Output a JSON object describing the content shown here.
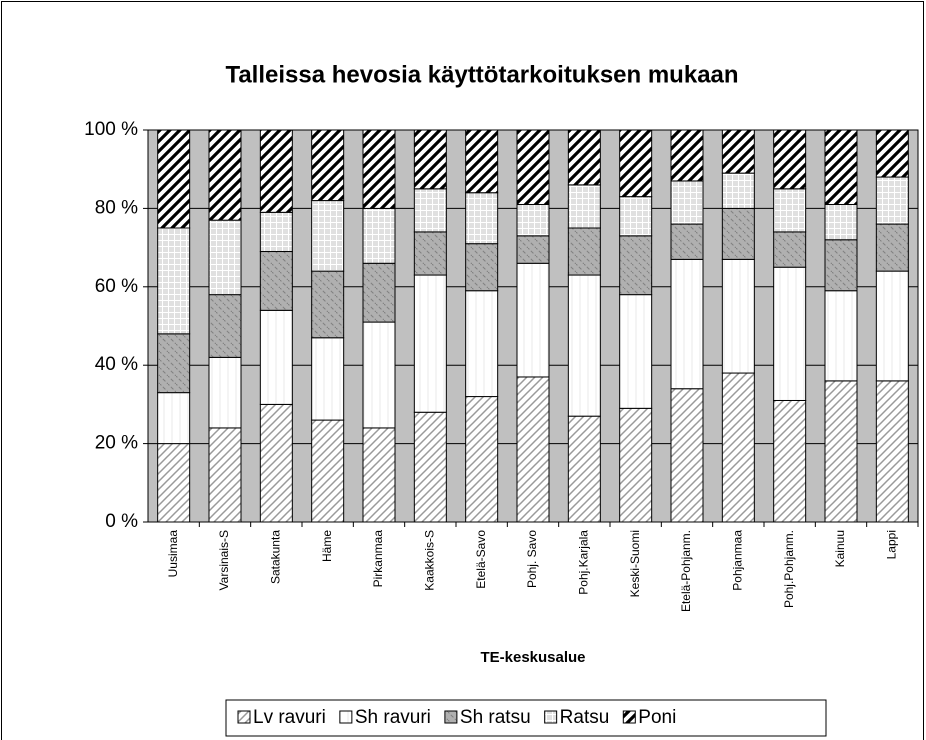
{
  "chart_data": {
    "type": "stacked_bar_100",
    "title": "Talleissa hevosia käyttötarkoituksen mukaan",
    "x_label": "TE-keskusalue",
    "categories": [
      "Uusimaa",
      "Varsinais-S",
      "Satakunta",
      "Häme",
      "Pirkanmaa",
      "Kaakkois-S",
      "Etelä-Savo",
      "Pohj. Savo",
      "Pohj.Karjala",
      "Keski-Suomi",
      "Etelä-Pohjanm.",
      "Pohjanmaa",
      "Pohj.Pohjanm.",
      "Kainuu",
      "Lappi"
    ],
    "series": [
      {
        "name": "Lv ravuri",
        "color": "#9a9a9a",
        "values": [
          20,
          24,
          30,
          26,
          24,
          28,
          32,
          37,
          27,
          29,
          34,
          38,
          31,
          36,
          36
        ]
      },
      {
        "name": "Sh ravuri",
        "color": "#ffffff",
        "values": [
          13,
          18,
          24,
          21,
          27,
          35,
          27,
          29,
          36,
          29,
          33,
          29,
          34,
          23,
          28
        ]
      },
      {
        "name": "Sh ratsu",
        "color": "#b0b0b0",
        "values": [
          15,
          16,
          15,
          17,
          15,
          11,
          12,
          7,
          12,
          15,
          9,
          13,
          9,
          13,
          12
        ]
      },
      {
        "name": "Ratsu",
        "color": "#e0e0e0",
        "values": [
          27,
          19,
          10,
          18,
          14,
          11,
          13,
          8,
          11,
          10,
          11,
          9,
          11,
          9,
          12
        ]
      },
      {
        "name": "Poni",
        "color": "#000000",
        "values": [
          25,
          23,
          21,
          18,
          20,
          15,
          16,
          19,
          14,
          17,
          13,
          11,
          15,
          19,
          12
        ]
      }
    ],
    "ylim": [
      0,
      100
    ],
    "yticks": [
      {
        "value": 0,
        "label": "0 %"
      },
      {
        "value": 20,
        "label": "20 %"
      },
      {
        "value": 40,
        "label": "40 %"
      },
      {
        "value": 60,
        "label": "60 %"
      },
      {
        "value": 80,
        "label": "80 %"
      },
      {
        "value": 100,
        "label": "100 %"
      }
    ],
    "grid": true,
    "plot_background": "#c0c0c0"
  }
}
